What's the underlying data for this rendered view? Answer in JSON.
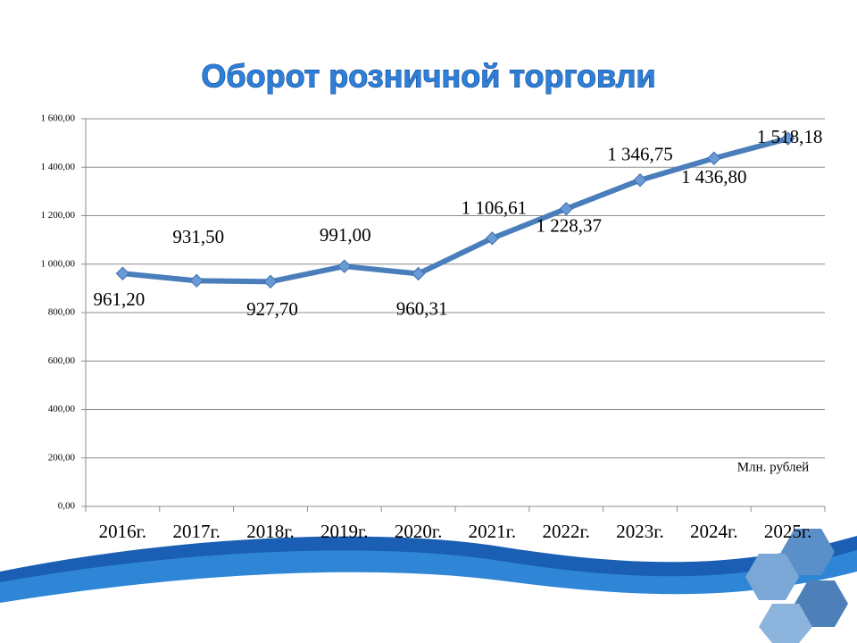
{
  "chart_data": {
    "type": "line",
    "title": "Оборот розничной торговли",
    "annotation": "Млн. рублей",
    "categories": [
      "2016г.",
      "2017г.",
      "2018г.",
      "2019г.",
      "2020г.",
      "2021г.",
      "2022г.",
      "2023г.",
      "2024г.",
      "2025г."
    ],
    "values": [
      961.2,
      931.5,
      927.7,
      991.0,
      960.31,
      1106.61,
      1228.37,
      1346.75,
      1436.8,
      1518.18
    ],
    "value_labels": [
      "961,20",
      "931,50",
      "927,70",
      "991,00",
      "960,31",
      "1 106,61",
      "1 228,37",
      "1 346,75",
      "1 436,80",
      "1 518,18"
    ],
    "color": "#4a7ebb",
    "ylim": [
      0,
      1600
    ],
    "yticks": [
      {
        "value": 0,
        "label": "0,00"
      },
      {
        "value": 200,
        "label": "200,00"
      },
      {
        "value": 400,
        "label": "400,00"
      },
      {
        "value": 600,
        "label": "600,00"
      },
      {
        "value": 800,
        "label": "800,00"
      },
      {
        "value": 1000,
        "label": "1 000,00"
      },
      {
        "value": 1200,
        "label": "1 200,00"
      },
      {
        "value": 1400,
        "label": "1 400,00"
      },
      {
        "value": 1600,
        "label": "1 600,00"
      }
    ],
    "grid": true
  }
}
